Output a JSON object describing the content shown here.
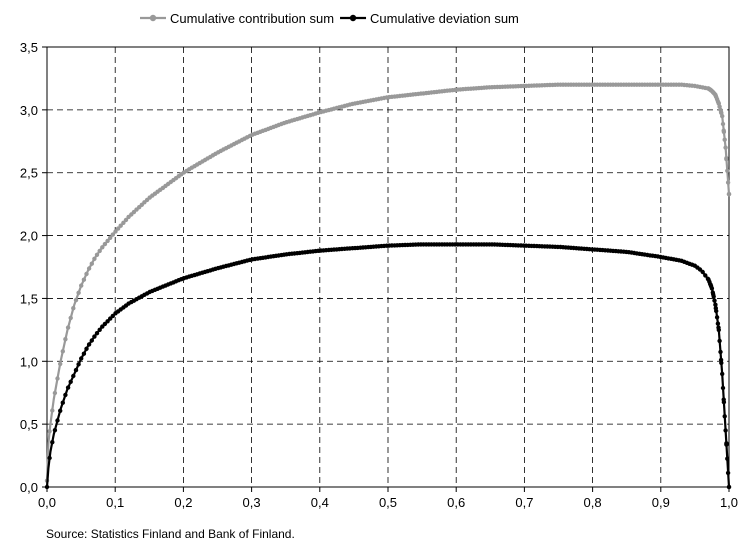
{
  "chart_data": {
    "type": "line",
    "xlim": [
      0.0,
      1.0
    ],
    "ylim": [
      0.0,
      3.5
    ],
    "x_ticks": [
      "0,0",
      "0,1",
      "0,2",
      "0,3",
      "0,4",
      "0,5",
      "0,6",
      "0,7",
      "0,8",
      "0,9",
      "1,0"
    ],
    "y_ticks": [
      "0,0",
      "0,5",
      "1,0",
      "1,5",
      "2,0",
      "2,5",
      "3,0",
      "3,5"
    ],
    "grid": true,
    "legend_position": "top",
    "series": [
      {
        "name": "Cumulative contribution sum",
        "color": "#999999",
        "x": [
          0,
          0.002,
          0.005,
          0.01,
          0.015,
          0.02,
          0.03,
          0.04,
          0.05,
          0.06,
          0.07,
          0.08,
          0.1,
          0.12,
          0.15,
          0.2,
          0.25,
          0.3,
          0.35,
          0.4,
          0.45,
          0.5,
          0.55,
          0.6,
          0.65,
          0.7,
          0.75,
          0.8,
          0.85,
          0.9,
          0.93,
          0.95,
          0.96,
          0.97,
          0.975,
          0.98,
          0.985,
          0.99,
          0.995,
          1.0
        ],
        "y": [
          0.05,
          0.35,
          0.5,
          0.7,
          0.85,
          1.0,
          1.25,
          1.45,
          1.6,
          1.72,
          1.82,
          1.9,
          2.03,
          2.15,
          2.3,
          2.5,
          2.66,
          2.8,
          2.9,
          2.98,
          3.05,
          3.1,
          3.13,
          3.16,
          3.18,
          3.19,
          3.2,
          3.2,
          3.2,
          3.2,
          3.2,
          3.19,
          3.18,
          3.17,
          3.15,
          3.12,
          3.05,
          2.95,
          2.7,
          2.33
        ]
      },
      {
        "name": "Cumulative deviation sum",
        "color": "#000000",
        "x": [
          0,
          0.002,
          0.005,
          0.01,
          0.015,
          0.02,
          0.03,
          0.04,
          0.05,
          0.06,
          0.07,
          0.08,
          0.1,
          0.12,
          0.15,
          0.2,
          0.25,
          0.3,
          0.35,
          0.4,
          0.45,
          0.5,
          0.55,
          0.6,
          0.65,
          0.7,
          0.75,
          0.8,
          0.85,
          0.9,
          0.93,
          0.95,
          0.96,
          0.97,
          0.975,
          0.98,
          0.985,
          0.99,
          0.995,
          1.0
        ],
        "y": [
          0.0,
          0.15,
          0.28,
          0.42,
          0.52,
          0.62,
          0.78,
          0.9,
          1.02,
          1.12,
          1.2,
          1.27,
          1.38,
          1.46,
          1.55,
          1.66,
          1.74,
          1.81,
          1.85,
          1.88,
          1.9,
          1.92,
          1.93,
          1.93,
          1.93,
          1.92,
          1.91,
          1.89,
          1.87,
          1.83,
          1.8,
          1.76,
          1.72,
          1.65,
          1.58,
          1.45,
          1.25,
          0.9,
          0.45,
          0.0
        ]
      }
    ]
  },
  "source_note": "Source: Statistics Finland and Bank of Finland."
}
